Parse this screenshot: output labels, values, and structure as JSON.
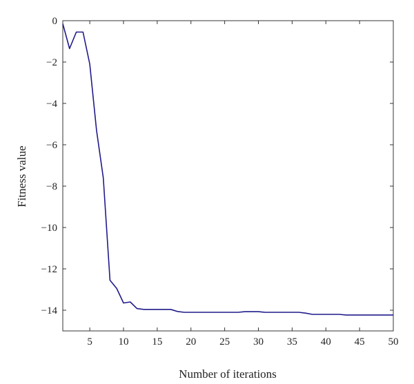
{
  "chart_data": {
    "type": "line",
    "title": "",
    "xlabel": "Number of iterations",
    "ylabel": "Fitness value",
    "xlim": [
      1,
      50
    ],
    "ylim": [
      -15,
      0
    ],
    "xticks": [
      5,
      10,
      15,
      20,
      25,
      30,
      35,
      40,
      45,
      50
    ],
    "yticks": [
      0,
      -2,
      -4,
      -6,
      -8,
      -10,
      -12,
      -14
    ],
    "ytick_labels": [
      "0",
      "−2",
      "−4",
      "−6",
      "−8",
      "−10",
      "−12",
      "−14"
    ],
    "grid": false,
    "line_color": "#1f1a8a",
    "series": [
      {
        "x": [
          1,
          2,
          3,
          4,
          5,
          6,
          7,
          8,
          9,
          10,
          11,
          12,
          13,
          14,
          15,
          16,
          17,
          18,
          19,
          20,
          21,
          22,
          23,
          24,
          25,
          26,
          27,
          28,
          29,
          30,
          31,
          32,
          33,
          34,
          35,
          36,
          37,
          38,
          39,
          40,
          41,
          42,
          43,
          44,
          45,
          46,
          47,
          48,
          49,
          50
        ],
        "y": [
          -0.15,
          -1.35,
          -0.55,
          -0.55,
          -2.1,
          -5.3,
          -7.6,
          -12.55,
          -12.95,
          -13.65,
          -13.6,
          -13.92,
          -13.96,
          -13.96,
          -13.96,
          -13.96,
          -13.96,
          -14.06,
          -14.1,
          -14.1,
          -14.1,
          -14.1,
          -14.1,
          -14.1,
          -14.1,
          -14.1,
          -14.1,
          -14.07,
          -14.07,
          -14.07,
          -14.1,
          -14.1,
          -14.1,
          -14.1,
          -14.1,
          -14.1,
          -14.14,
          -14.2,
          -14.2,
          -14.2,
          -14.2,
          -14.2,
          -14.23,
          -14.23,
          -14.23,
          -14.23,
          -14.23,
          -14.23,
          -14.23,
          -14.23
        ]
      }
    ]
  }
}
